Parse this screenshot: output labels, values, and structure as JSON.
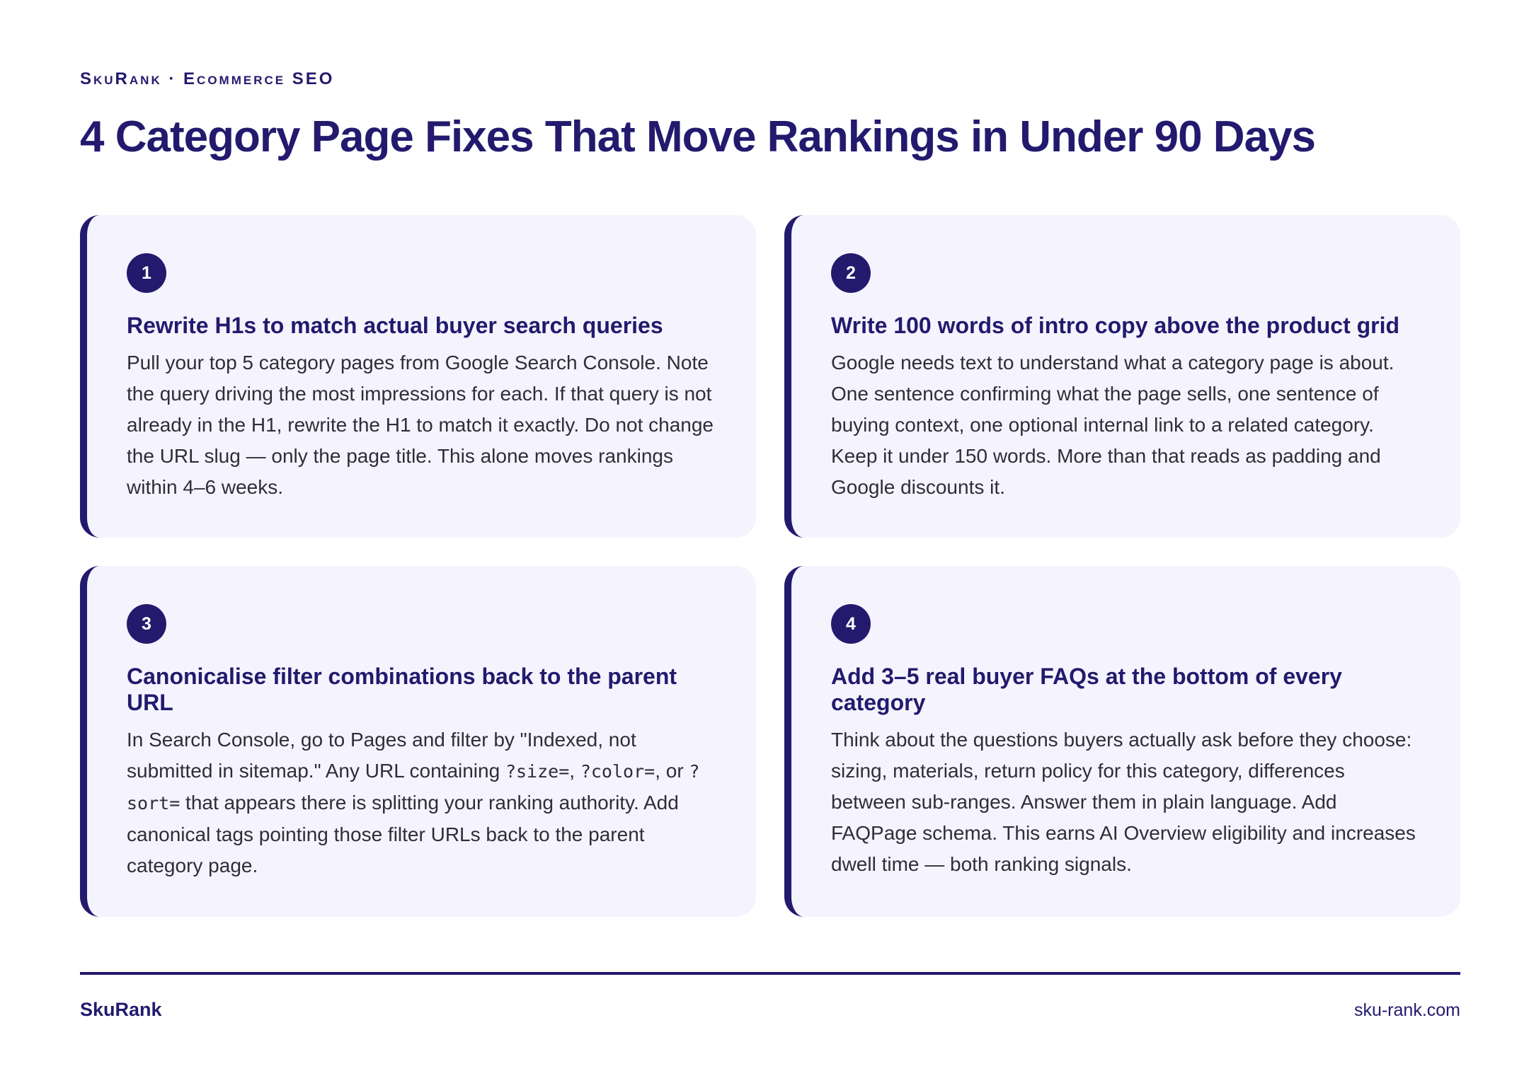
{
  "header": {
    "eyebrow": "SkuRank · Ecommerce SEO",
    "title": "4 Category Page Fixes That Move Rankings in Under 90 Days"
  },
  "cards": [
    {
      "number": "1",
      "title": "Rewrite H1s to match actual buyer search queries",
      "body": "Pull your top 5 category pages from Google Search Console. Note the query driving the most impressions for each. If that query is not already in the H1, rewrite the H1 to match it exactly. Do not change the URL slug — only the page title. This alone moves rankings within 4–6 weeks."
    },
    {
      "number": "2",
      "title": "Write 100 words of intro copy above the product grid",
      "body": "Google needs text to understand what a category page is about. One sentence confirming what the page sells, one sentence of buying context, one optional internal link to a related category. Keep it under 150 words. More than that reads as padding and Google discounts it."
    },
    {
      "number": "3",
      "title": "Canonicalise filter combinations back to the parent URL",
      "body_parts": {
        "p1": "In Search Console, go to Pages and filter by \"Indexed, not submitted in sitemap.\" Any URL containing ",
        "code1": "?size=",
        "p2": ", ",
        "code2": "?color=",
        "p3": ", or ",
        "code3": "?sort=",
        "p4": " that appears there is splitting your ranking authority. Add canonical tags pointing those filter URLs back to the parent category page."
      }
    },
    {
      "number": "4",
      "title": "Add 3–5 real buyer FAQs at the bottom of every category",
      "body": "Think about the questions buyers actually ask before they choose: sizing, materials, return policy for this category, differences between sub-ranges. Answer them in plain language. Add FAQPage schema. This earns AI Overview eligibility and increases dwell time — both ranking signals."
    }
  ],
  "footer": {
    "brand": "SkuRank",
    "url": "sku-rank.com"
  },
  "colors": {
    "accent": "#231a6e",
    "card_bg": "#f5f4fe",
    "body_text": "#2e2e38"
  }
}
